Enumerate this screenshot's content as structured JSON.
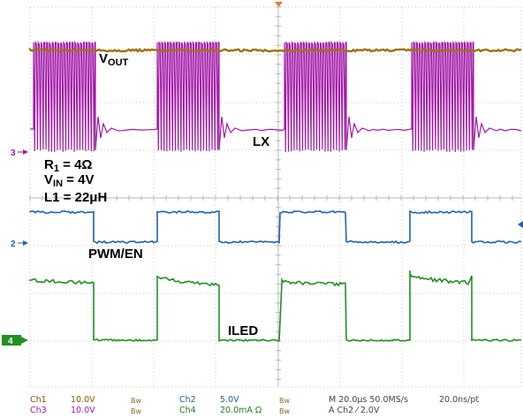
{
  "labels": {
    "vout": {
      "main": "V",
      "sub": "OUT"
    },
    "lx": "LX",
    "r1": {
      "main": "R",
      "sub": "1",
      "rest": " = 4Ω"
    },
    "vin": {
      "main": "V",
      "sub": "IN",
      "rest": " = 4V"
    },
    "l1": "L1 = 22μH",
    "pwm": "PWM/EN",
    "iled": "ILED"
  },
  "markers": {
    "ch3": "3",
    "ch2": "2",
    "ch4": "4"
  },
  "footer": {
    "ch1": "Ch1",
    "ch1_scale": "10.0V",
    "ch1_bw": "Bw",
    "ch2": "Ch2",
    "ch2_scale": "5.0V",
    "ch2_bw": "Bw",
    "ch3": "Ch3",
    "ch3_scale": "10.0V",
    "ch3_bw": "Bw",
    "ch4": "Ch4",
    "ch4_scale": "20.0mA Ω",
    "ch4_bw": "Bw",
    "timebase": "M 20.0μs 50.0MS/s",
    "resolution": "20.0ns/pt",
    "trigger": "A Ch2 ⁄ 2.0V"
  },
  "colors": {
    "vout": "#a0700f",
    "lx": "#a21aa8",
    "pwm": "#1f63b0",
    "iled": "#229022",
    "grid": "#c8c8c8",
    "trigger": "#d9822b"
  }
}
